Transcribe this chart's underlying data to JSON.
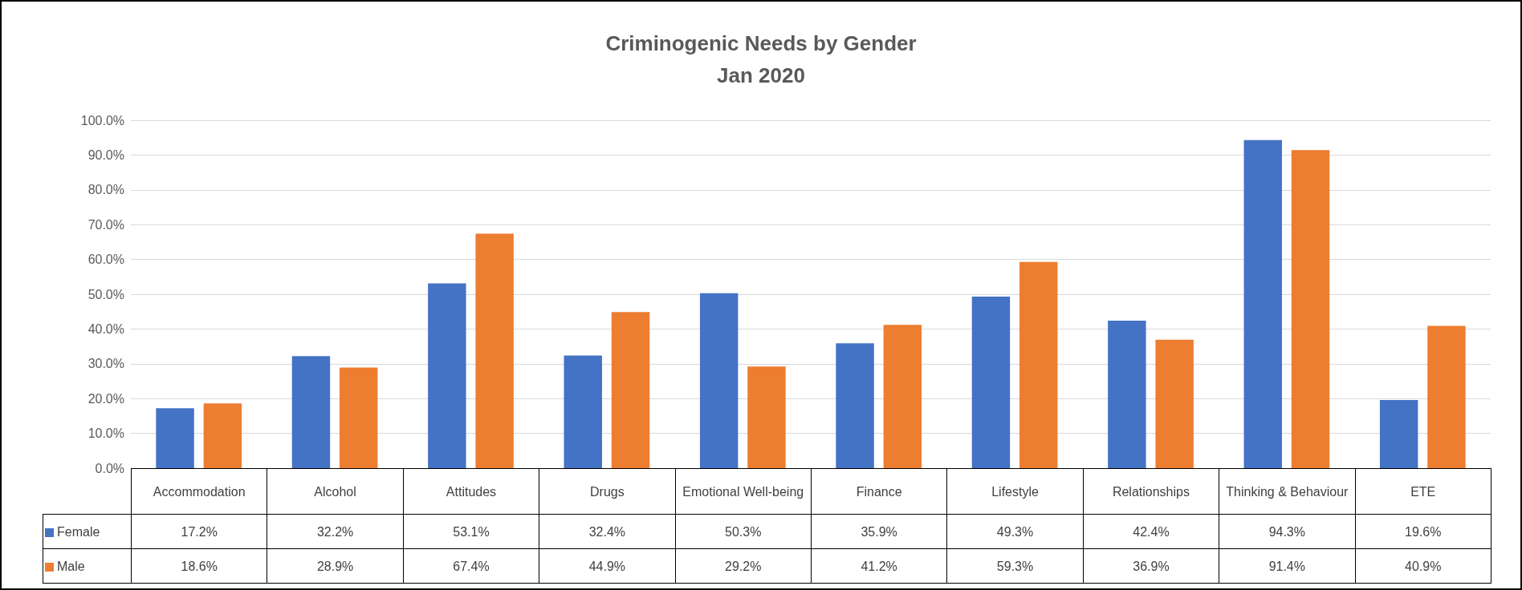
{
  "chart_data": {
    "type": "bar",
    "title": "Criminogenic Needs by Gender",
    "subtitle": "Jan 2020",
    "categories": [
      "Accommodation",
      "Alcohol",
      "Attitudes",
      "Drugs",
      "Emotional Well-being",
      "Finance",
      "Lifestyle",
      "Relationships",
      "Thinking & Behaviour",
      "ETE"
    ],
    "series": [
      {
        "name": "Female",
        "color": "#4472c4",
        "values": [
          17.2,
          32.2,
          53.1,
          32.4,
          50.3,
          35.9,
          49.3,
          42.4,
          94.3,
          19.6
        ],
        "value_labels": [
          "17.2%",
          "32.2%",
          "53.1%",
          "32.4%",
          "50.3%",
          "35.9%",
          "49.3%",
          "42.4%",
          "94.3%",
          "19.6%"
        ]
      },
      {
        "name": "Male",
        "color": "#ed7d31",
        "values": [
          18.6,
          28.9,
          67.4,
          44.9,
          29.2,
          41.2,
          59.3,
          36.9,
          91.4,
          40.9
        ],
        "value_labels": [
          "18.6%",
          "28.9%",
          "67.4%",
          "44.9%",
          "29.2%",
          "41.2%",
          "59.3%",
          "36.9%",
          "91.4%",
          "40.9%"
        ]
      }
    ],
    "ylim": [
      0,
      100
    ],
    "yticks": [
      {
        "value": 0,
        "label": "0.0%"
      },
      {
        "value": 10,
        "label": "10.0%"
      },
      {
        "value": 20,
        "label": "20.0%"
      },
      {
        "value": 30,
        "label": "30.0%"
      },
      {
        "value": 40,
        "label": "40.0%"
      },
      {
        "value": 50,
        "label": "50.0%"
      },
      {
        "value": 60,
        "label": "60.0%"
      },
      {
        "value": 70,
        "label": "70.0%"
      },
      {
        "value": 80,
        "label": "80.0%"
      },
      {
        "value": 90,
        "label": "90.0%"
      },
      {
        "value": 100,
        "label": "100.0%"
      }
    ],
    "grid": "y",
    "legend": "bottom left"
  }
}
